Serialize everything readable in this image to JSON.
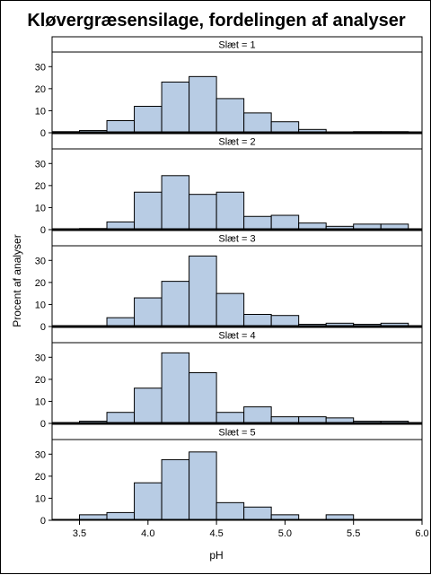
{
  "chart_data": {
    "type": "bar",
    "title": "Kløvergræsensilage, fordelingen af analyser",
    "xlabel": "pH",
    "ylabel": "Procent af analyser",
    "xlim": [
      3.3,
      6.0
    ],
    "ylim": [
      0,
      35
    ],
    "x_ticks": [
      "3.5",
      "4.0",
      "4.5",
      "5.0",
      "5.5",
      "6.0"
    ],
    "y_ticks": [
      "0",
      "10",
      "20",
      "30"
    ],
    "bin_width": 0.2,
    "bin_starts": [
      3.3,
      3.5,
      3.7,
      3.9,
      4.1,
      4.3,
      4.5,
      4.7,
      4.9,
      5.1,
      5.3,
      5.5,
      5.7
    ],
    "panels": [
      {
        "label": "Slæt = 1",
        "values": [
          0.5,
          1,
          5.5,
          12,
          23,
          25.5,
          15.5,
          9,
          5,
          1.5,
          0,
          0.5,
          0.5
        ]
      },
      {
        "label": "Slæt = 2",
        "values": [
          0,
          0.5,
          3.5,
          17,
          24.5,
          16,
          17,
          6,
          6.5,
          3,
          1.5,
          2.5,
          2.5
        ]
      },
      {
        "label": "Slæt = 3",
        "values": [
          0,
          0,
          4,
          13,
          20.5,
          32,
          15,
          5.5,
          5,
          1,
          1.5,
          1,
          1.5
        ]
      },
      {
        "label": "Slæt = 4",
        "values": [
          0,
          1,
          5,
          16,
          32,
          23,
          5,
          7.5,
          3,
          3,
          2.5,
          1,
          1
        ]
      },
      {
        "label": "Slæt = 5",
        "values": [
          0,
          2.5,
          3.5,
          17,
          27.5,
          31,
          8,
          6,
          2.5,
          0,
          2.5,
          0,
          0
        ]
      }
    ]
  }
}
